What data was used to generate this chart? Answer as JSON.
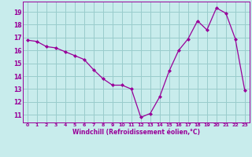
{
  "x": [
    0,
    1,
    2,
    3,
    4,
    5,
    6,
    7,
    8,
    9,
    10,
    11,
    12,
    13,
    14,
    15,
    16,
    17,
    18,
    19,
    20,
    21,
    22,
    23
  ],
  "y": [
    16.8,
    16.7,
    16.3,
    16.2,
    15.9,
    15.6,
    15.3,
    14.5,
    13.8,
    13.3,
    13.3,
    13.0,
    10.8,
    11.1,
    12.4,
    14.4,
    16.0,
    16.9,
    18.3,
    17.6,
    19.3,
    18.9,
    16.9,
    12.9
  ],
  "line_color": "#990099",
  "marker_color": "#990099",
  "bg_color": "#c8ecec",
  "grid_color": "#99cccc",
  "xlabel": "Windchill (Refroidissement éolien,°C)",
  "xlabel_color": "#990099",
  "tick_color": "#990099",
  "ylim": [
    10.4,
    19.8
  ],
  "yticks": [
    11,
    12,
    13,
    14,
    15,
    16,
    17,
    18,
    19
  ],
  "xticks": [
    0,
    1,
    2,
    3,
    4,
    5,
    6,
    7,
    8,
    9,
    10,
    11,
    12,
    13,
    14,
    15,
    16,
    17,
    18,
    19,
    20,
    21,
    22,
    23
  ],
  "spine_color": "#990099",
  "figsize": [
    3.2,
    2.0
  ],
  "dpi": 100
}
